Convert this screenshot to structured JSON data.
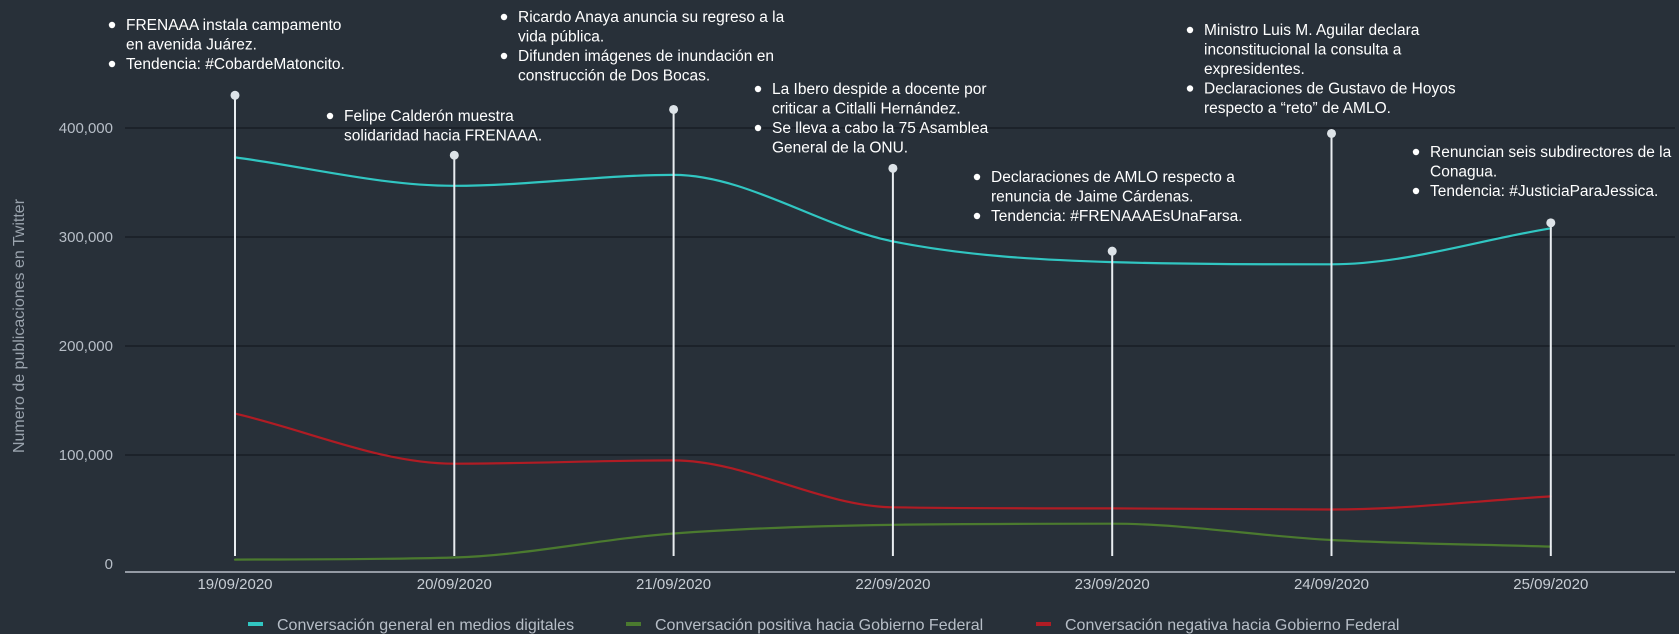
{
  "chart_data": {
    "type": "line",
    "title": "",
    "xlabel": "",
    "ylabel": "Numero de publicaciones en Twitter",
    "ylim": [
      0,
      420000
    ],
    "y_ticks": [
      0,
      100000,
      200000,
      300000,
      400000
    ],
    "y_tick_labels": [
      "0",
      "100,000",
      "200,000",
      "300,000",
      "400,000"
    ],
    "grid": true,
    "legend_position": "bottom",
    "categories": [
      "19/09/2020",
      "20/09/2020",
      "21/09/2020",
      "22/09/2020",
      "23/09/2020",
      "24/09/2020",
      "25/09/2020"
    ],
    "series": [
      {
        "name": "Conversación general en medios digitales",
        "color": "#31c6c2",
        "values": [
          373000,
          347000,
          357000,
          296000,
          277000,
          275000,
          308000
        ]
      },
      {
        "name": "Conversación positiva hacia Gobierno Federal",
        "color": "#4b7a2f",
        "values": [
          4000,
          6000,
          28000,
          36000,
          37000,
          22000,
          16000
        ]
      },
      {
        "name": "Conversación negativa hacia Gobierno Federal",
        "color": "#b01c24",
        "values": [
          138000,
          92000,
          95000,
          52000,
          51000,
          50000,
          62000
        ]
      }
    ],
    "annotations": [
      {
        "category_index": 0,
        "marker_value": 430000,
        "items": [
          [
            "FRENAAA instala campamento",
            "en avenida Juárez."
          ],
          [
            "Tendencia: #CobardeMatoncito."
          ]
        ]
      },
      {
        "category_index": 1,
        "marker_value": 375000,
        "items": [
          [
            "Felipe Calderón muestra",
            "solidaridad hacia FRENAAA."
          ]
        ]
      },
      {
        "category_index": 2,
        "marker_value": 417000,
        "items": [
          [
            "Ricardo Anaya anuncia su regreso a la",
            "vida pública."
          ],
          [
            "Difunden imágenes de inundación en",
            "construcción de Dos Bocas."
          ]
        ]
      },
      {
        "category_index": 3,
        "marker_value": 363000,
        "items": [
          [
            "La Ibero despide a docente por",
            "criticar a Citlalli Hernández."
          ],
          [
            "Se lleva a cabo la 75 Asamblea",
            "General de la ONU."
          ]
        ]
      },
      {
        "category_index": 4,
        "marker_value": 287000,
        "items": [
          [
            "Declaraciones de AMLO respecto a",
            "renuncia de Jaime Cárdenas."
          ],
          [
            "Tendencia: #FRENAAAEsUnaFarsa."
          ]
        ]
      },
      {
        "category_index": 5,
        "marker_value": 395000,
        "items": [
          [
            "Ministro Luis M. Aguilar declara",
            "inconstitucional la consulta a",
            "expresidentes."
          ],
          [
            "Declaraciones de Gustavo de Hoyos",
            "respecto a “reto” de AMLO."
          ]
        ]
      },
      {
        "category_index": 6,
        "marker_value": 313000,
        "items": [
          [
            "Renuncian seis subdirectores de la",
            "Conagua."
          ],
          [
            "Tendencia: #JusticiaParaJessica."
          ]
        ]
      }
    ]
  }
}
